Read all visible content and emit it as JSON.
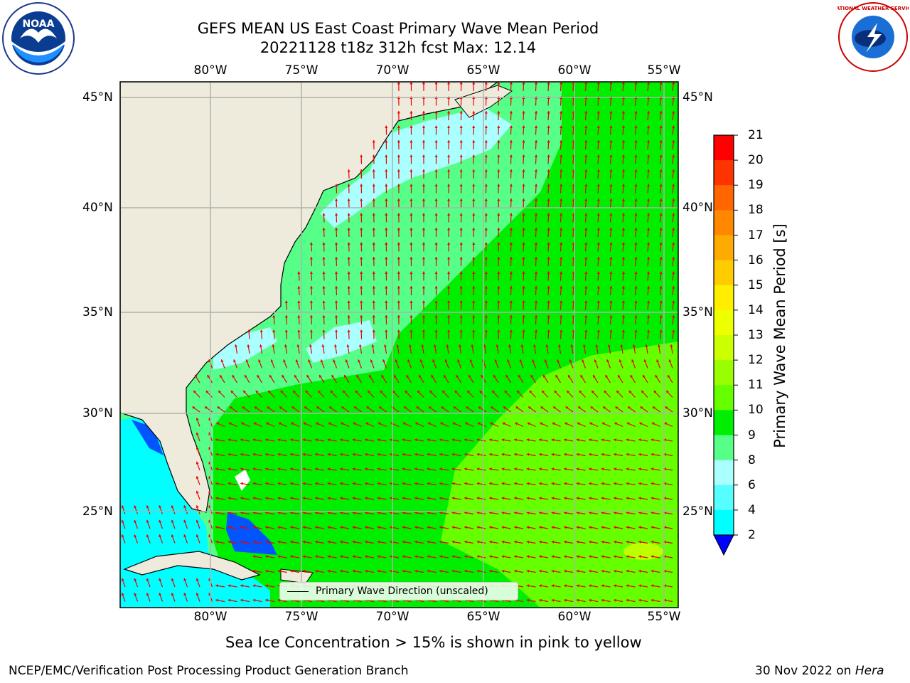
{
  "title": {
    "line1": "GEFS MEAN US East Coast Primary Wave Mean Period",
    "line2": "20221128 t18z 312h fcst   Max: 12.14"
  },
  "map": {
    "lon_ticks": [
      "80°W",
      "75°W",
      "70°W",
      "65°W",
      "60°W",
      "55°W"
    ],
    "lat_ticks": [
      "45°N",
      "40°N",
      "35°N",
      "30°N",
      "25°N"
    ],
    "land_color": "#efebdc",
    "grid_color": "#b0b0b0",
    "arrow_color": "#ee0000",
    "legend_label": "Primary Wave Direction (unscaled)"
  },
  "colorbar": {
    "label": "Primary Wave Mean Period [s]",
    "ticks": [
      "21",
      "20",
      "19",
      "18",
      "17",
      "16",
      "15",
      "14",
      "13",
      "12",
      "11",
      "10",
      "9",
      "8",
      "6",
      "4",
      "2"
    ],
    "colors": [
      "#ff0000",
      "#ff3300",
      "#ff6600",
      "#ff8800",
      "#ffaa00",
      "#ffcc00",
      "#ffee00",
      "#eeff00",
      "#ccff00",
      "#99ff00",
      "#66ff00",
      "#00ee00",
      "#55ff88",
      "#aaffff",
      "#55ffff",
      "#00ffff",
      "#00aaff",
      "#0055ff",
      "#0000ff"
    ]
  },
  "note": "Sea Ice Concentration > 15% is shown in pink to yellow",
  "footer": {
    "left": "NCEP/EMC/Verification Post Processing Product Generation Branch",
    "right_date": "30 Nov 2022 on ",
    "right_host": "Hera"
  },
  "logos": {
    "noaa_text": "NOAA",
    "nws_text": "NATIONAL WEATHER SERVICE"
  }
}
